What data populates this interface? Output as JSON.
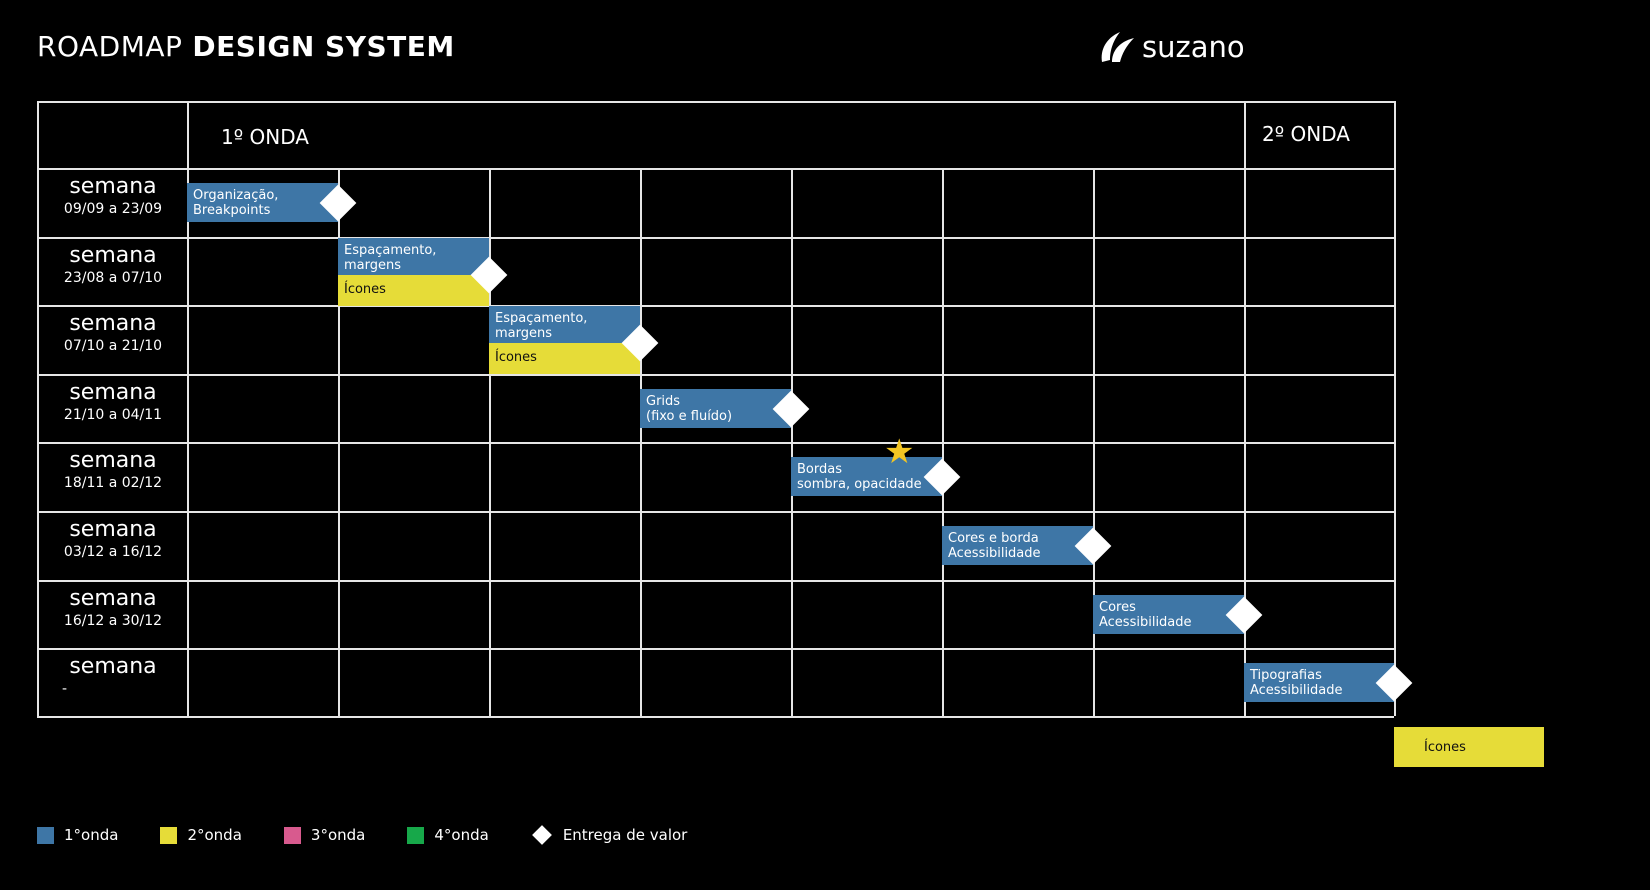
{
  "title": {
    "light": "ROADMAP",
    "bold": "DESIGN SYSTEM"
  },
  "logo": {
    "text": "suzano"
  },
  "waves": {
    "first": "1º ONDA",
    "second": "2º ONDA"
  },
  "weeks": [
    {
      "title": "semana",
      "range": "09/09 a 23/09"
    },
    {
      "title": "semana",
      "range": "23/08 a 07/10"
    },
    {
      "title": "semana",
      "range": "07/10 a 21/10"
    },
    {
      "title": "semana",
      "range": "21/10 a 04/11"
    },
    {
      "title": "semana",
      "range": "18/11 a 02/12"
    },
    {
      "title": "semana",
      "range": "03/12 a 16/12"
    },
    {
      "title": "semana",
      "range": "16/12 a 30/12"
    },
    {
      "title": "semana",
      "range": "-"
    }
  ],
  "tasks": [
    {
      "label1": "Organização,",
      "label2": "Breakpoints",
      "color": "#3e76a6",
      "wave": "1°onda",
      "row": 1,
      "column": 1,
      "delivery": true
    },
    {
      "label1": "Espaçamento,",
      "label2": "margens",
      "color": "#3e76a6",
      "wave": "1°onda",
      "row": 2,
      "column": 2,
      "delivery": false
    },
    {
      "label1": "Ícones",
      "label2": "",
      "color": "#e6dc38",
      "wave": "2°onda",
      "row": 2,
      "column": 2,
      "delivery": true
    },
    {
      "label1": "Espaçamento,",
      "label2": "margens",
      "color": "#3e76a6",
      "wave": "1°onda",
      "row": 3,
      "column": 3,
      "delivery": false
    },
    {
      "label1": "Ícones",
      "label2": "",
      "color": "#e6dc38",
      "wave": "2°onda",
      "row": 3,
      "column": 3,
      "delivery": true
    },
    {
      "label1": "Grids",
      "label2": "(fixo e fluído)",
      "color": "#3e76a6",
      "wave": "1°onda",
      "row": 4,
      "column": 4,
      "delivery": true
    },
    {
      "label1": "Bordas",
      "label2": "sombra, opacidade",
      "color": "#3e76a6",
      "wave": "1°onda",
      "row": 5,
      "column": 5,
      "delivery": true,
      "star": true
    },
    {
      "label1": "Cores e borda",
      "label2": "Acessibilidade",
      "color": "#3e76a6",
      "wave": "1°onda",
      "row": 6,
      "column": 6,
      "delivery": true
    },
    {
      "label1": "Cores",
      "label2": "Acessibilidade",
      "color": "#3e76a6",
      "wave": "1°onda",
      "row": 7,
      "column": 7,
      "delivery": true
    },
    {
      "label1": "Tipografias",
      "label2": "Acessibilidade",
      "color": "#3e76a6",
      "wave": "1°onda",
      "row": 8,
      "column": 8,
      "delivery": true
    },
    {
      "label1": "Ícones",
      "label2": "",
      "color": "#e6dc38",
      "wave": "2°onda",
      "row": 9,
      "column": 9,
      "delivery": false
    }
  ],
  "legend": [
    {
      "label": "1°onda",
      "color": "#3e76a6"
    },
    {
      "label": "2°onda",
      "color": "#e6dc38"
    },
    {
      "label": "3°onda",
      "color": "#d85a8e"
    },
    {
      "label": "4°onda",
      "color": "#17a84a"
    },
    {
      "label": "Entrega de valor",
      "color": "#ffffff"
    }
  ]
}
